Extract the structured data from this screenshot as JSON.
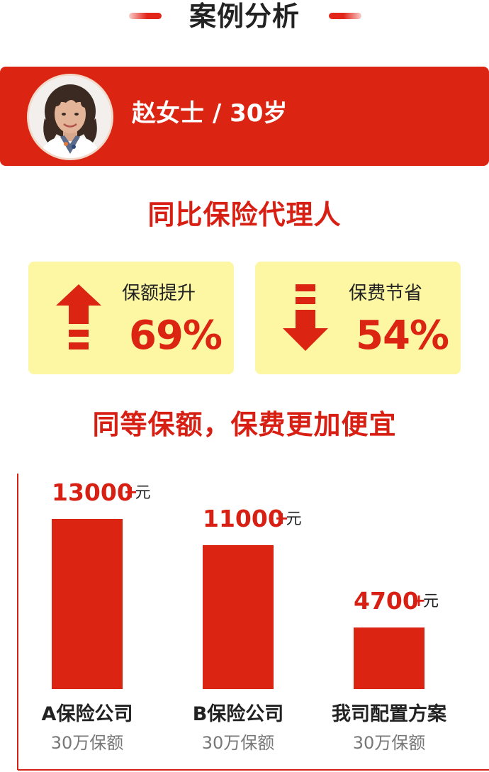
{
  "header": {
    "title": "案例分析",
    "accent_color": "#e2261a"
  },
  "profile": {
    "name": "赵女士 / 30岁",
    "banner_color": "#dc2412",
    "avatar_icon": "woman-portrait-avatar"
  },
  "comparison": {
    "title": "同比保险代理人",
    "cards": [
      {
        "label": "保额提升",
        "value": "69%",
        "icon": "arrow-up-icon"
      },
      {
        "label": "保费节省",
        "value": "54%",
        "icon": "arrow-down-icon"
      }
    ],
    "card_color": "#fdf7a3"
  },
  "chart_heading": "同等保额，保费更加便宜",
  "chart_data": {
    "type": "bar",
    "title": "同等保额，保费更加便宜",
    "categories": [
      "A保险公司",
      "B保险公司",
      "我司配置方案"
    ],
    "sublabels": [
      "30万保额",
      "30万保额",
      "30万保额"
    ],
    "values": [
      13000,
      11000,
      4700
    ],
    "value_labels": [
      "13000",
      "11000",
      "4700"
    ],
    "value_suffix": "+",
    "unit": "元",
    "bar_color": "#dc2412",
    "ylim": [
      0,
      13000
    ],
    "grid": false,
    "legend": "none"
  }
}
